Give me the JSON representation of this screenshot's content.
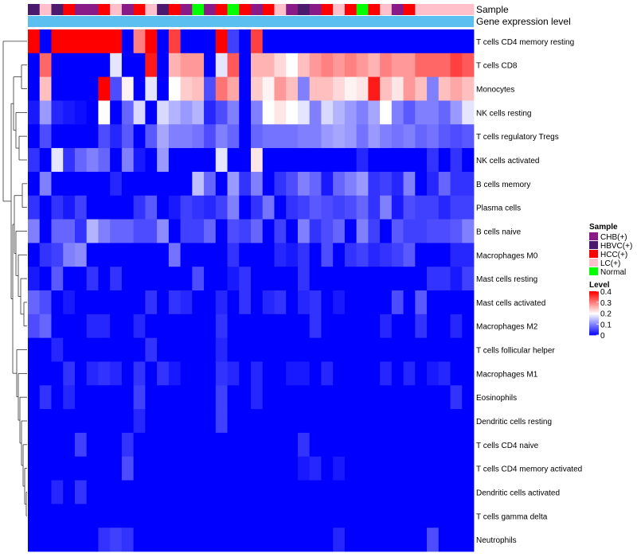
{
  "chart_data": {
    "type": "heatmap",
    "title": "",
    "annotation_labels": [
      "Sample",
      "Gene expression level"
    ],
    "sample_groups": [
      "CHB(+)",
      "HBVC(+)",
      "HCC(+)",
      "LC(+)",
      "Normal"
    ],
    "sample_group_colors": {
      "CHB(+)": "#8B1A89",
      "HBVC(+)": "#4B1A6E",
      "HCC(+)": "#FF0000",
      "LC(+)": "#FFC0CB",
      "Normal": "#00FF00"
    },
    "column_samples": [
      "HBVC(+)",
      "LC(+)",
      "HBVC(+)",
      "HCC(+)",
      "CHB(+)",
      "CHB(+)",
      "HCC(+)",
      "LC(+)",
      "CHB(+)",
      "HCC(+)",
      "LC(+)",
      "HBVC(+)",
      "HCC(+)",
      "CHB(+)",
      "Normal",
      "CHB(+)",
      "HCC(+)",
      "Normal",
      "HCC(+)",
      "CHB(+)",
      "HCC(+)",
      "LC(+)",
      "CHB(+)",
      "HBVC(+)",
      "CHB(+)",
      "HCC(+)",
      "LC(+)",
      "HCC(+)",
      "Normal",
      "HCC(+)",
      "LC(+)",
      "CHB(+)",
      "HCC(+)",
      "LC(+)",
      "LC(+)",
      "LC(+)",
      "LC(+)",
      "LC(+)"
    ],
    "expression_bar_color": "#5BC0F0",
    "rows": [
      "T cells CD4 memory resting",
      "T cells CD8",
      "Monocytes",
      "NK cells resting",
      "T cells regulatory  Tregs",
      "NK cells activated",
      "B cells memory",
      "Plasma cells",
      "B cells naive",
      "Macrophages M0",
      "Mast cells resting",
      "Mast cells activated",
      "Macrophages M2",
      "T cells follicular helper",
      "Macrophages M1",
      "Eosinophils",
      "Dendritic cells resting",
      "T cells CD4 naive",
      "T cells CD4 memory activated",
      "Dendritic cells activated",
      "T cells gamma delta",
      "Neutrophils"
    ],
    "values": [
      [
        0.4,
        0.0,
        0.4,
        0.4,
        0.4,
        0.4,
        0.4,
        0.4,
        0.0,
        0.3,
        0.4,
        0.0,
        0.35,
        0.0,
        0.0,
        0.0,
        0.4,
        0.05,
        0.0,
        0.35,
        0.0,
        0.0,
        0.0,
        0.0,
        0.0,
        0.0,
        0.0,
        0.0,
        0.0,
        0.0,
        0.0,
        0.0,
        0.0,
        0.0,
        0.0,
        0.0,
        0.0,
        0.0
      ],
      [
        0.0,
        0.32,
        0.0,
        0.0,
        0.0,
        0.0,
        0.0,
        0.18,
        0.0,
        0.0,
        0.38,
        0.0,
        0.26,
        0.28,
        0.28,
        0.0,
        0.18,
        0.33,
        0.0,
        0.26,
        0.26,
        0.23,
        0.2,
        0.25,
        0.28,
        0.3,
        0.28,
        0.3,
        0.28,
        0.26,
        0.3,
        0.28,
        0.28,
        0.32,
        0.32,
        0.32,
        0.35,
        0.33
      ],
      [
        0.0,
        0.25,
        0.0,
        0.0,
        0.0,
        0.0,
        0.4,
        0.06,
        0.21,
        0.0,
        0.18,
        0.0,
        0.2,
        0.24,
        0.25,
        0.06,
        0.31,
        0.27,
        0.0,
        0.24,
        0.21,
        0.28,
        0.25,
        0.1,
        0.25,
        0.25,
        0.23,
        0.21,
        0.22,
        0.38,
        0.25,
        0.22,
        0.28,
        0.25,
        0.1,
        0.25,
        0.27,
        0.25
      ],
      [
        0.02,
        0.12,
        0.03,
        0.02,
        0.01,
        0.0,
        0.2,
        0.0,
        0.08,
        0.17,
        0.0,
        0.17,
        0.14,
        0.12,
        0.14,
        0.03,
        0.06,
        0.1,
        0.0,
        0.1,
        0.2,
        0.22,
        0.2,
        0.18,
        0.1,
        0.17,
        0.14,
        0.12,
        0.1,
        0.13,
        0.2,
        0.1,
        0.07,
        0.1,
        0.1,
        0.08,
        0.12,
        0.18
      ],
      [
        0.0,
        0.06,
        0.0,
        0.0,
        0.0,
        0.0,
        0.06,
        0.03,
        0.07,
        0.0,
        0.07,
        0.13,
        0.1,
        0.1,
        0.09,
        0.06,
        0.1,
        0.08,
        0.0,
        0.08,
        0.09,
        0.09,
        0.09,
        0.1,
        0.1,
        0.12,
        0.13,
        0.12,
        0.09,
        0.12,
        0.1,
        0.09,
        0.1,
        0.08,
        0.09,
        0.07,
        0.06,
        0.07
      ],
      [
        0.04,
        0.0,
        0.18,
        0.04,
        0.08,
        0.1,
        0.08,
        0.0,
        0.1,
        0.02,
        0.0,
        0.12,
        0.0,
        0.0,
        0.0,
        0.0,
        0.18,
        0.0,
        0.0,
        0.22,
        0.0,
        0.0,
        0.0,
        0.0,
        0.0,
        0.0,
        0.0,
        0.0,
        0.03,
        0.0,
        0.0,
        0.0,
        0.0,
        0.0,
        0.04,
        0.0,
        0.04,
        0.0
      ],
      [
        0.0,
        0.1,
        0.0,
        0.0,
        0.0,
        0.0,
        0.0,
        0.03,
        0.0,
        0.0,
        0.0,
        0.0,
        0.0,
        0.0,
        0.15,
        0.08,
        0.0,
        0.12,
        0.04,
        0.1,
        0.0,
        0.04,
        0.06,
        0.1,
        0.08,
        0.02,
        0.08,
        0.1,
        0.12,
        0.04,
        0.05,
        0.03,
        0.1,
        0.0,
        0.03,
        0.08,
        0.04,
        0.04
      ],
      [
        0.04,
        0.0,
        0.04,
        0.02,
        0.05,
        0.0,
        0.0,
        0.0,
        0.0,
        0.04,
        0.07,
        0.0,
        0.02,
        0.05,
        0.04,
        0.03,
        0.05,
        0.1,
        0.0,
        0.04,
        0.09,
        0.0,
        0.04,
        0.05,
        0.07,
        0.06,
        0.05,
        0.06,
        0.08,
        0.04,
        0.1,
        0.02,
        0.06,
        0.05,
        0.05,
        0.03,
        0.05,
        0.05
      ],
      [
        0.1,
        0.0,
        0.08,
        0.08,
        0.04,
        0.14,
        0.1,
        0.08,
        0.08,
        0.06,
        0.06,
        0.11,
        0.0,
        0.05,
        0.05,
        0.08,
        0.0,
        0.06,
        0.05,
        0.08,
        0.0,
        0.05,
        0.0,
        0.1,
        0.04,
        0.06,
        0.08,
        0.0,
        0.1,
        0.05,
        0.0,
        0.07,
        0.05,
        0.05,
        0.06,
        0.06,
        0.07,
        0.1
      ],
      [
        0.0,
        0.04,
        0.05,
        0.1,
        0.11,
        0.0,
        0.0,
        0.0,
        0.0,
        0.0,
        0.0,
        0.0,
        0.09,
        0.0,
        0.0,
        0.0,
        0.0,
        0.04,
        0.0,
        0.0,
        0.0,
        0.03,
        0.02,
        0.04,
        0.0,
        0.06,
        0.0,
        0.04,
        0.05,
        0.03,
        0.04,
        0.05,
        0.07,
        0.0,
        0.0,
        0.0,
        0.03,
        0.03
      ],
      [
        0.02,
        0.0,
        0.07,
        0.0,
        0.0,
        0.04,
        0.0,
        0.04,
        0.0,
        0.0,
        0.0,
        0.0,
        0.0,
        0.0,
        0.06,
        0.0,
        0.0,
        0.02,
        0.04,
        0.0,
        0.0,
        0.0,
        0.0,
        0.04,
        0.0,
        0.0,
        0.0,
        0.0,
        0.0,
        0.0,
        0.0,
        0.0,
        0.0,
        0.0,
        0.04,
        0.04,
        0.02,
        0.05
      ],
      [
        0.08,
        0.06,
        0.0,
        0.02,
        0.0,
        0.0,
        0.0,
        0.0,
        0.0,
        0.0,
        0.04,
        0.0,
        0.04,
        0.03,
        0.0,
        0.0,
        0.03,
        0.0,
        0.04,
        0.0,
        0.03,
        0.04,
        0.0,
        0.03,
        0.04,
        0.0,
        0.02,
        0.0,
        0.0,
        0.0,
        0.0,
        0.06,
        0.0,
        0.07,
        0.0,
        0.0,
        0.0,
        0.0
      ],
      [
        0.06,
        0.08,
        0.0,
        0.0,
        0.0,
        0.03,
        0.03,
        0.0,
        0.0,
        0.03,
        0.0,
        0.0,
        0.0,
        0.0,
        0.0,
        0.0,
        0.04,
        0.0,
        0.0,
        0.0,
        0.0,
        0.0,
        0.0,
        0.0,
        0.04,
        0.0,
        0.0,
        0.0,
        0.0,
        0.0,
        0.03,
        0.0,
        0.0,
        0.04,
        0.0,
        0.0,
        0.03,
        0.0
      ],
      [
        0.0,
        0.0,
        0.03,
        0.0,
        0.0,
        0.0,
        0.0,
        0.0,
        0.0,
        0.0,
        0.04,
        0.0,
        0.0,
        0.0,
        0.0,
        0.0,
        0.03,
        0.0,
        0.0,
        0.0,
        0.0,
        0.0,
        0.0,
        0.0,
        0.0,
        0.0,
        0.0,
        0.0,
        0.0,
        0.0,
        0.0,
        0.0,
        0.0,
        0.0,
        0.0,
        0.0,
        0.0,
        0.0
      ],
      [
        0.0,
        0.0,
        0.0,
        0.04,
        0.0,
        0.03,
        0.04,
        0.03,
        0.0,
        0.04,
        0.0,
        0.04,
        0.02,
        0.0,
        0.0,
        0.0,
        0.04,
        0.03,
        0.0,
        0.03,
        0.0,
        0.0,
        0.02,
        0.02,
        0.0,
        0.03,
        0.0,
        0.0,
        0.0,
        0.0,
        0.03,
        0.0,
        0.03,
        0.0,
        0.02,
        0.03,
        0.0,
        0.0
      ],
      [
        0.0,
        0.04,
        0.0,
        0.03,
        0.0,
        0.0,
        0.0,
        0.0,
        0.0,
        0.05,
        0.0,
        0.0,
        0.0,
        0.0,
        0.0,
        0.0,
        0.05,
        0.0,
        0.0,
        0.03,
        0.0,
        0.0,
        0.0,
        0.0,
        0.0,
        0.0,
        0.0,
        0.0,
        0.0,
        0.0,
        0.0,
        0.0,
        0.0,
        0.0,
        0.0,
        0.0,
        0.04,
        0.0
      ],
      [
        0.0,
        0.0,
        0.0,
        0.0,
        0.0,
        0.0,
        0.0,
        0.0,
        0.0,
        0.03,
        0.0,
        0.0,
        0.0,
        0.0,
        0.0,
        0.0,
        0.05,
        0.0,
        0.0,
        0.0,
        0.0,
        0.0,
        0.0,
        0.0,
        0.0,
        0.0,
        0.0,
        0.0,
        0.0,
        0.0,
        0.0,
        0.0,
        0.0,
        0.0,
        0.0,
        0.0,
        0.0,
        0.0
      ],
      [
        0.0,
        0.0,
        0.0,
        0.0,
        0.05,
        0.0,
        0.0,
        0.0,
        0.04,
        0.0,
        0.0,
        0.0,
        0.0,
        0.0,
        0.0,
        0.0,
        0.0,
        0.0,
        0.0,
        0.0,
        0.0,
        0.0,
        0.0,
        0.04,
        0.0,
        0.0,
        0.0,
        0.0,
        0.0,
        0.0,
        0.0,
        0.0,
        0.0,
        0.0,
        0.0,
        0.0,
        0.0,
        0.0
      ],
      [
        0.0,
        0.0,
        0.0,
        0.0,
        0.0,
        0.0,
        0.0,
        0.0,
        0.06,
        0.0,
        0.0,
        0.0,
        0.0,
        0.0,
        0.0,
        0.0,
        0.0,
        0.0,
        0.0,
        0.0,
        0.0,
        0.0,
        0.0,
        0.02,
        0.03,
        0.0,
        0.02,
        0.0,
        0.0,
        0.0,
        0.0,
        0.0,
        0.0,
        0.0,
        0.0,
        0.0,
        0.0,
        0.0
      ],
      [
        0.0,
        0.0,
        0.03,
        0.0,
        0.04,
        0.0,
        0.0,
        0.0,
        0.0,
        0.0,
        0.0,
        0.0,
        0.0,
        0.0,
        0.0,
        0.0,
        0.0,
        0.0,
        0.0,
        0.0,
        0.0,
        0.0,
        0.0,
        0.0,
        0.0,
        0.0,
        0.0,
        0.0,
        0.0,
        0.0,
        0.0,
        0.0,
        0.0,
        0.0,
        0.0,
        0.0,
        0.0,
        0.0
      ],
      [
        0.0,
        0.0,
        0.0,
        0.0,
        0.0,
        0.0,
        0.0,
        0.0,
        0.0,
        0.0,
        0.0,
        0.0,
        0.0,
        0.0,
        0.0,
        0.0,
        0.0,
        0.0,
        0.0,
        0.0,
        0.0,
        0.0,
        0.0,
        0.0,
        0.0,
        0.0,
        0.0,
        0.0,
        0.0,
        0.0,
        0.0,
        0.0,
        0.0,
        0.0,
        0.0,
        0.0,
        0.0,
        0.0
      ],
      [
        0.0,
        0.0,
        0.0,
        0.0,
        0.0,
        0.0,
        0.04,
        0.05,
        0.04,
        0.0,
        0.0,
        0.0,
        0.0,
        0.0,
        0.0,
        0.0,
        0.0,
        0.0,
        0.0,
        0.0,
        0.0,
        0.0,
        0.0,
        0.0,
        0.0,
        0.0,
        0.03,
        0.0,
        0.0,
        0.0,
        0.0,
        0.0,
        0.0,
        0.0,
        0.06,
        0.0,
        0.0,
        0.0
      ]
    ],
    "color_scale": {
      "min": 0,
      "mid": 0.2,
      "max": 0.4,
      "low_color": "#0000FF",
      "mid_color": "#FFFFFF",
      "high_color": "#FF0000"
    },
    "legend": {
      "sample_title": "Sample",
      "level_title": "Level",
      "level_ticks": [
        "0.4",
        "0.3",
        "0.2",
        "0.1",
        "0"
      ],
      "level_tick_values": [
        0.4,
        0.3,
        0.2,
        0.1,
        0
      ],
      "placement": "right"
    }
  }
}
